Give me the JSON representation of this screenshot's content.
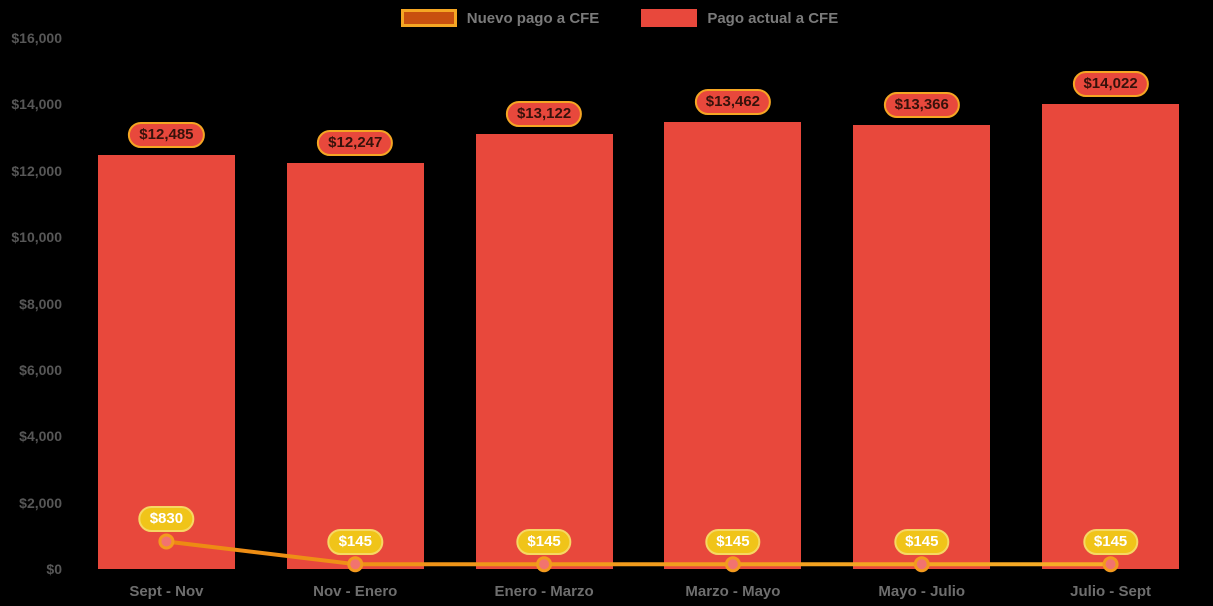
{
  "legend": {
    "items": [
      {
        "label": "Nuevo pago a CFE",
        "swatch_fill": "#C8500F",
        "swatch_border": "#F5A623"
      },
      {
        "label": "Pago actual a CFE",
        "swatch_fill": "#E8483C",
        "swatch_border": "#E8483C"
      }
    ]
  },
  "chart_data": {
    "type": "bar",
    "categories": [
      "Sept - Nov",
      "Nov - Enero",
      "Enero - Marzo",
      "Marzo - Mayo",
      "Mayo - Julio",
      "Julio - Sept"
    ],
    "series": [
      {
        "name": "Pago actual a CFE",
        "type": "bar",
        "color": "#E8483C",
        "values": [
          12485,
          12247,
          13122,
          13462,
          13366,
          14022
        ],
        "labels": [
          "$12,485",
          "$12,247",
          "$13,122",
          "$13,462",
          "$13,366",
          "$14,022"
        ]
      },
      {
        "name": "Nuevo pago a CFE",
        "type": "line",
        "color": "#F39A1E",
        "marker_fill": "#F2736F",
        "values": [
          830,
          145,
          145,
          145,
          145,
          145
        ],
        "labels": [
          "$830",
          "$145",
          "$145",
          "$145",
          "$145",
          "$145"
        ]
      }
    ],
    "ylim": [
      0,
      16000
    ],
    "ytick_step": 2000,
    "ytick_labels": [
      "$0",
      "$2,000",
      "$4,000",
      "$6,000",
      "$8,000",
      "$10,000",
      "$12,000",
      "$14,000",
      "$16,000"
    ],
    "grid": false,
    "legend_position": "top"
  },
  "colors": {
    "background": "#000000",
    "bar": "#E8483C",
    "line": "#F39A1E",
    "line_gradient_start": "#ED8A12",
    "line_gradient_end": "#F7AE27",
    "marker_fill": "#F2736F",
    "bar_badge_bg": "#E8483C",
    "bar_badge_border": "#F5A623",
    "bar_badge_text": "#36120B",
    "line_badge_bg": "#F0C419",
    "line_badge_border": "#F6D863",
    "line_badge_text": "#FFFFFF",
    "ytick_text": "#575757",
    "xtick_text": "#6E6E6E",
    "legend_text": "#7A7A7A"
  }
}
